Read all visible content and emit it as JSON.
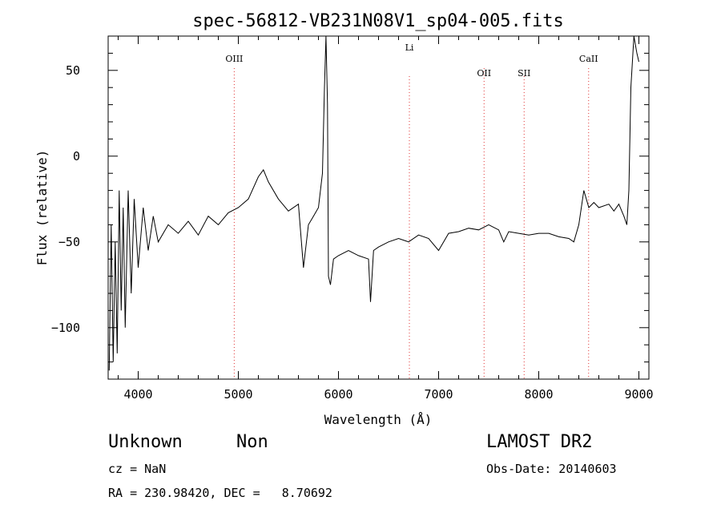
{
  "chart_data": {
    "type": "line",
    "title": "spec-56812-VB231N08V1_sp04-005.fits",
    "xlabel": "Wavelength (Å)",
    "ylabel": "Flux (relative)",
    "xlim": [
      3700,
      9100
    ],
    "ylim": [
      -130,
      70
    ],
    "x_ticks": [
      4000,
      5000,
      6000,
      7000,
      8000,
      9000
    ],
    "y_ticks": [
      -100,
      -50,
      0,
      50
    ],
    "x_tick_labels": [
      "4000",
      "5000",
      "6000",
      "7000",
      "8000",
      "9000"
    ],
    "y_tick_labels": [
      "−100",
      "−50",
      "0",
      "50"
    ],
    "grid": false,
    "line_color": "#000000",
    "marker_color": "#e03030",
    "spectral_lines": [
      {
        "label": "OIII",
        "x": 4959
      },
      {
        "label": "Li",
        "x": 6708
      },
      {
        "label": "OII",
        "x": 7454
      },
      {
        "label": "SII",
        "x": 7854
      },
      {
        "label": "CaII",
        "x": 8498
      }
    ],
    "series": [
      {
        "values": [
          [
            3710,
            -125
          ],
          [
            3730,
            -40
          ],
          [
            3750,
            -120
          ],
          [
            3770,
            -50
          ],
          [
            3790,
            -115
          ],
          [
            3810,
            -20
          ],
          [
            3830,
            -90
          ],
          [
            3850,
            -30
          ],
          [
            3870,
            -100
          ],
          [
            3900,
            -20
          ],
          [
            3930,
            -80
          ],
          [
            3960,
            -25
          ],
          [
            4000,
            -65
          ],
          [
            4050,
            -30
          ],
          [
            4100,
            -55
          ],
          [
            4150,
            -35
          ],
          [
            4200,
            -50
          ],
          [
            4300,
            -40
          ],
          [
            4400,
            -45
          ],
          [
            4500,
            -38
          ],
          [
            4600,
            -46
          ],
          [
            4700,
            -35
          ],
          [
            4800,
            -40
          ],
          [
            4900,
            -33
          ],
          [
            5000,
            -30
          ],
          [
            5100,
            -25
          ],
          [
            5200,
            -12
          ],
          [
            5250,
            -8
          ],
          [
            5300,
            -15
          ],
          [
            5400,
            -25
          ],
          [
            5500,
            -32
          ],
          [
            5600,
            -28
          ],
          [
            5650,
            -65
          ],
          [
            5700,
            -40
          ],
          [
            5750,
            -35
          ],
          [
            5800,
            -30
          ],
          [
            5840,
            -10
          ],
          [
            5860,
            40
          ],
          [
            5875,
            70
          ],
          [
            5890,
            30
          ],
          [
            5900,
            -70
          ],
          [
            5920,
            -75
          ],
          [
            5950,
            -60
          ],
          [
            6000,
            -58
          ],
          [
            6100,
            -55
          ],
          [
            6200,
            -58
          ],
          [
            6300,
            -60
          ],
          [
            6320,
            -85
          ],
          [
            6350,
            -55
          ],
          [
            6400,
            -53
          ],
          [
            6500,
            -50
          ],
          [
            6600,
            -48
          ],
          [
            6700,
            -50
          ],
          [
            6800,
            -46
          ],
          [
            6900,
            -48
          ],
          [
            7000,
            -55
          ],
          [
            7100,
            -45
          ],
          [
            7200,
            -44
          ],
          [
            7300,
            -42
          ],
          [
            7400,
            -43
          ],
          [
            7500,
            -40
          ],
          [
            7600,
            -43
          ],
          [
            7650,
            -50
          ],
          [
            7700,
            -44
          ],
          [
            7800,
            -45
          ],
          [
            7900,
            -46
          ],
          [
            8000,
            -45
          ],
          [
            8100,
            -45
          ],
          [
            8200,
            -47
          ],
          [
            8300,
            -48
          ],
          [
            8350,
            -50
          ],
          [
            8400,
            -40
          ],
          [
            8450,
            -20
          ],
          [
            8500,
            -30
          ],
          [
            8550,
            -27
          ],
          [
            8600,
            -30
          ],
          [
            8700,
            -28
          ],
          [
            8750,
            -32
          ],
          [
            8800,
            -28
          ],
          [
            8850,
            -35
          ],
          [
            8880,
            -40
          ],
          [
            8900,
            -20
          ],
          [
            8920,
            40
          ],
          [
            8950,
            70
          ],
          [
            8980,
            60
          ],
          [
            9000,
            55
          ]
        ]
      }
    ]
  },
  "info": {
    "class": "Unknown",
    "subclass": "Non",
    "survey": "LAMOST DR2",
    "cz": "cz = NaN",
    "obs_date": "Obs-Date: 20140603",
    "radec": "RA = 230.98420, DEC =   8.70692"
  }
}
